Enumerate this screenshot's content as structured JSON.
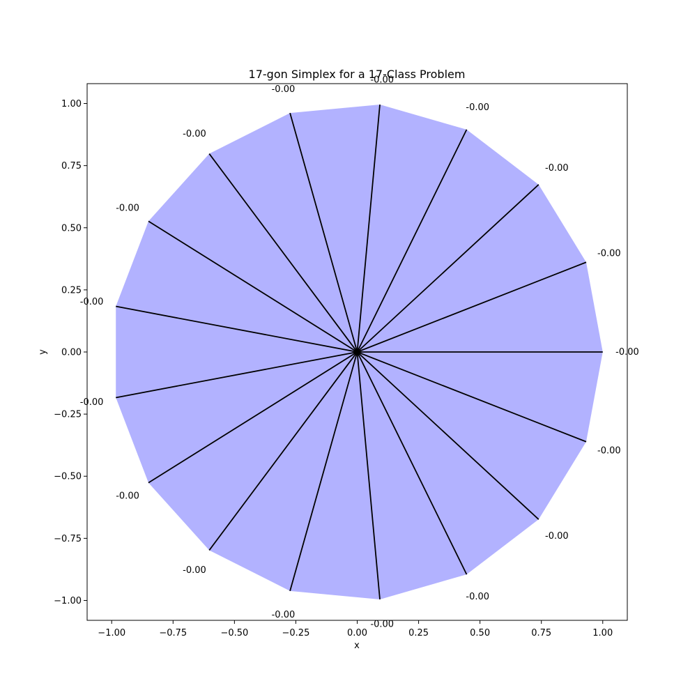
{
  "chart_data": {
    "type": "scatter",
    "title": "17-gon Simplex for a 17-Class Problem",
    "xlabel": "x",
    "ylabel": "y",
    "xlim": [
      -1.1,
      1.1
    ],
    "ylim": [
      -1.08,
      1.08
    ],
    "grid": false,
    "legend": "none",
    "fill_color": "#b2b2ff",
    "line_color": "#000000",
    "xticks": [
      {
        "value": -1.0,
        "label": "−1.00"
      },
      {
        "value": -0.75,
        "label": "−0.75"
      },
      {
        "value": -0.5,
        "label": "−0.50"
      },
      {
        "value": -0.25,
        "label": "−0.25"
      },
      {
        "value": 0.0,
        "label": "0.00"
      },
      {
        "value": 0.25,
        "label": "0.25"
      },
      {
        "value": 0.5,
        "label": "0.50"
      },
      {
        "value": 0.75,
        "label": "0.75"
      },
      {
        "value": 1.0,
        "label": "1.00"
      }
    ],
    "yticks": [
      {
        "value": -1.0,
        "label": "−1.00"
      },
      {
        "value": -0.75,
        "label": "−0.75"
      },
      {
        "value": -0.5,
        "label": "−0.50"
      },
      {
        "value": -0.25,
        "label": "−0.25"
      },
      {
        "value": 0.0,
        "label": "0.00"
      },
      {
        "value": 0.25,
        "label": "0.25"
      },
      {
        "value": 0.5,
        "label": "0.50"
      },
      {
        "value": 0.75,
        "label": "0.75"
      },
      {
        "value": 1.0,
        "label": "1.00"
      }
    ],
    "vertices": [
      {
        "x": 1.0,
        "y": 0.0,
        "label": "-0.00"
      },
      {
        "x": 0.9325,
        "y": 0.3612,
        "label": "-0.00"
      },
      {
        "x": 0.739,
        "y": 0.6737,
        "label": "-0.00"
      },
      {
        "x": 0.4457,
        "y": 0.8952,
        "label": "-0.00"
      },
      {
        "x": 0.0923,
        "y": 0.9957,
        "label": "-0.00"
      },
      {
        "x": -0.2737,
        "y": 0.9618,
        "label": "-0.00"
      },
      {
        "x": -0.6026,
        "y": 0.798,
        "label": "-0.00"
      },
      {
        "x": -0.8502,
        "y": 0.5264,
        "label": "-0.00"
      },
      {
        "x": -0.983,
        "y": 0.1837,
        "label": "-0.00"
      },
      {
        "x": -0.983,
        "y": -0.1837,
        "label": "-0.00"
      },
      {
        "x": -0.8502,
        "y": -0.5264,
        "label": "-0.00"
      },
      {
        "x": -0.6026,
        "y": -0.798,
        "label": "-0.00"
      },
      {
        "x": -0.2737,
        "y": -0.9618,
        "label": "-0.00"
      },
      {
        "x": 0.0923,
        "y": -0.9957,
        "label": "-0.00"
      },
      {
        "x": 0.4457,
        "y": -0.8952,
        "label": "-0.00"
      },
      {
        "x": 0.739,
        "y": -0.6737,
        "label": "-0.00"
      },
      {
        "x": 0.9325,
        "y": -0.3612,
        "label": "-0.00"
      }
    ]
  }
}
